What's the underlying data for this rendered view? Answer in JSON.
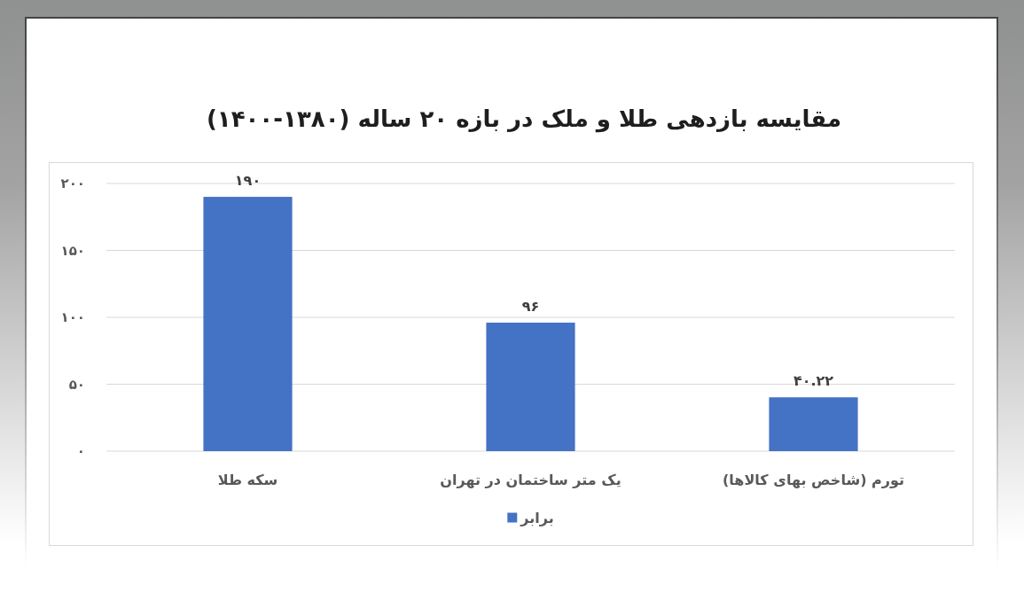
{
  "chart_data": {
    "type": "bar",
    "title": "مقایسه بازدهی طلا و ملک در بازه ۲۰ ساله (۱۳۸۰-۱۴۰۰)",
    "categories": [
      "سکه طلا",
      "یک متر ساختمان در تهران",
      "تورم (شاخص بهای کالاها)"
    ],
    "series": [
      {
        "name": "برابر",
        "color": "#4472c4",
        "values": [
          190,
          96,
          40.22
        ],
        "value_labels": [
          "۱۹۰",
          "۹۶",
          "۴۰.۲۲"
        ]
      }
    ],
    "ylim": [
      0,
      200
    ],
    "yticks": [
      {
        "value": 0,
        "label": "۰"
      },
      {
        "value": 50,
        "label": "۵۰"
      },
      {
        "value": 100,
        "label": "۱۰۰"
      },
      {
        "value": 150,
        "label": "۱۵۰"
      },
      {
        "value": 200,
        "label": "۲۰۰"
      }
    ],
    "grid": "y",
    "legend": "bottom"
  }
}
